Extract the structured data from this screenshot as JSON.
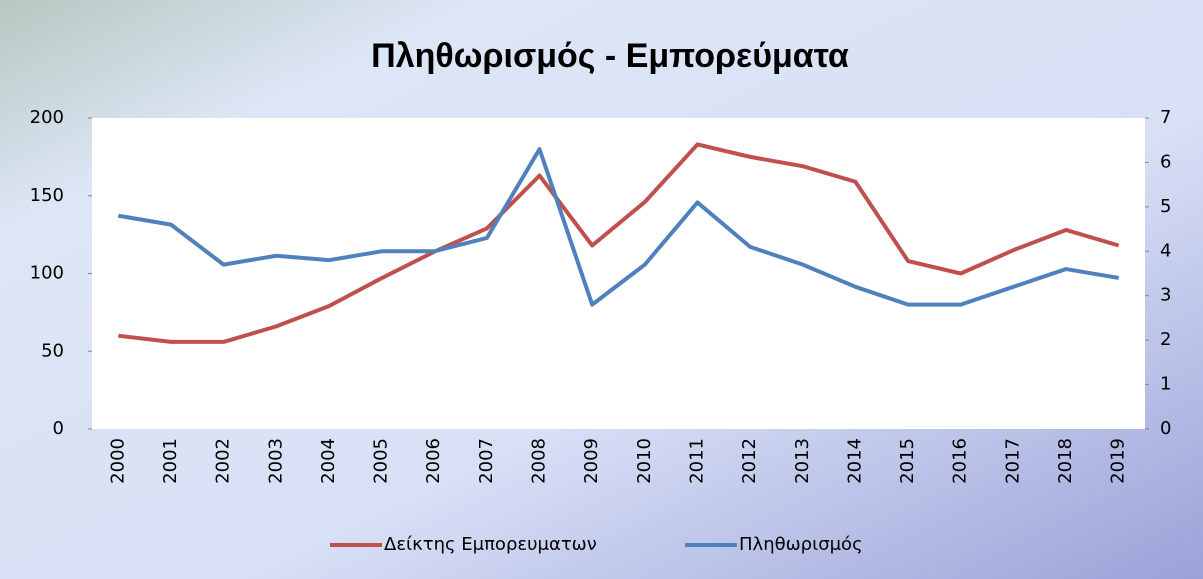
{
  "chart_data": {
    "type": "line",
    "title": "Πληθωρισμός - Εμπορεύματα",
    "categories": [
      "2000",
      "2001",
      "2002",
      "2003",
      "2004",
      "2005",
      "2006",
      "2007",
      "2008",
      "2009",
      "2010",
      "2011",
      "2012",
      "2013",
      "2014",
      "2015",
      "2016",
      "2017",
      "2018",
      "2019"
    ],
    "series": [
      {
        "name": "Δείκτης Εμπορευματων",
        "color": "#c0504d",
        "axis": "y",
        "values": [
          60,
          56,
          56,
          66,
          79,
          97,
          114,
          129,
          163,
          118,
          146,
          183,
          175,
          169,
          159,
          108,
          100,
          115,
          128,
          118
        ]
      },
      {
        "name": "Πληθωρισμός",
        "color": "#4f81bd",
        "axis": "y2",
        "values": [
          4.8,
          4.6,
          3.7,
          3.9,
          3.8,
          4.0,
          4.0,
          4.3,
          6.3,
          2.8,
          3.7,
          5.1,
          4.1,
          3.7,
          3.2,
          2.8,
          2.8,
          3.2,
          3.6,
          3.4
        ]
      }
    ],
    "ylim": [
      0,
      200
    ],
    "yticks": [
      0,
      50,
      100,
      150,
      200
    ],
    "y2lim": [
      0,
      7
    ],
    "y2ticks": [
      0,
      1,
      2,
      3,
      4,
      5,
      6,
      7
    ],
    "legend": "bottom"
  }
}
